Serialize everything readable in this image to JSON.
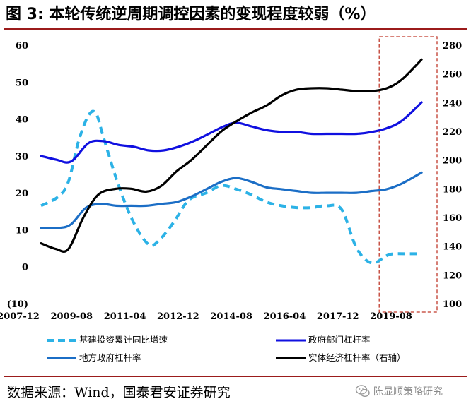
{
  "header": {
    "title": "图 3: 本轮传统逆周期调控因素的变现程度较弱（%）"
  },
  "footer": {
    "source": "数据来源：Wind，国泰君安证券研究",
    "watermark": "陈显顺策略研究"
  },
  "colors": {
    "infra": "#2cb2e6",
    "gov_dept": "#1010e0",
    "local_gov": "#1b6ec6",
    "real_econ": "#000000",
    "highlight_box": "#c0392b",
    "negative_label": "#c00000",
    "rule": "#9b1b1b"
  },
  "chart_data": {
    "type": "line",
    "title": "本轮传统逆周期调控因素的变现程度较弱（%）",
    "x_ticks": [
      "2007-12",
      "2009-08",
      "2011-04",
      "2012-12",
      "2014-08",
      "2016-04",
      "2017-12",
      "2019-08"
    ],
    "x_range": [
      2007.92,
      2021.0
    ],
    "left_axis": {
      "ticks": [
        "60",
        "50",
        "40",
        "30",
        "20",
        "10",
        "0",
        "(10)"
      ],
      "values": [
        60,
        50,
        40,
        30,
        20,
        10,
        0,
        -10
      ],
      "range": [
        -10,
        60
      ]
    },
    "right_axis": {
      "ticks": [
        "280",
        "260",
        "240",
        "220",
        "200",
        "180",
        "160",
        "140",
        "120",
        "100"
      ],
      "values": [
        280,
        260,
        240,
        220,
        200,
        180,
        160,
        140,
        120,
        100
      ],
      "range": [
        100,
        280
      ],
      "label": "右轴"
    },
    "highlight_region": {
      "x_start": 2019.17,
      "x_end": 2021.0
    },
    "series": [
      {
        "name": "基建投资累计同比增速",
        "key": "infra",
        "axis": "left",
        "style": "dashed",
        "points": [
          [
            2007.92,
            16.5
          ],
          [
            2008.5,
            19
          ],
          [
            2008.83,
            23
          ],
          [
            2009.17,
            34
          ],
          [
            2009.5,
            41
          ],
          [
            2009.75,
            41.5
          ],
          [
            2010.0,
            35
          ],
          [
            2010.5,
            22
          ],
          [
            2011.0,
            12
          ],
          [
            2011.5,
            6
          ],
          [
            2011.83,
            7
          ],
          [
            2012.33,
            12
          ],
          [
            2012.83,
            18
          ],
          [
            2013.42,
            20
          ],
          [
            2013.92,
            22
          ],
          [
            2014.42,
            21
          ],
          [
            2014.92,
            19.5
          ],
          [
            2015.42,
            17.5
          ],
          [
            2015.92,
            16.5
          ],
          [
            2016.42,
            16
          ],
          [
            2016.92,
            16
          ],
          [
            2017.42,
            16.5
          ],
          [
            2017.92,
            15.5
          ],
          [
            2018.42,
            5
          ],
          [
            2018.92,
            1
          ],
          [
            2019.42,
            3
          ],
          [
            2019.67,
            3.5
          ],
          [
            2020.17,
            3.5
          ],
          [
            2020.58,
            3.5
          ]
        ]
      },
      {
        "name": "政府部门杠杆率",
        "key": "gov_dept",
        "axis": "left",
        "style": "solid",
        "points": [
          [
            2007.92,
            30
          ],
          [
            2008.42,
            29
          ],
          [
            2008.92,
            28.5
          ],
          [
            2009.5,
            33.5
          ],
          [
            2010.0,
            34
          ],
          [
            2010.5,
            33
          ],
          [
            2011.0,
            32.5
          ],
          [
            2011.5,
            31.5
          ],
          [
            2012.0,
            31.5
          ],
          [
            2012.5,
            32.5
          ],
          [
            2013.0,
            34
          ],
          [
            2013.5,
            36
          ],
          [
            2014.0,
            38
          ],
          [
            2014.42,
            39
          ],
          [
            2014.92,
            38
          ],
          [
            2015.42,
            37
          ],
          [
            2015.92,
            36.5
          ],
          [
            2016.42,
            36.5
          ],
          [
            2016.92,
            36
          ],
          [
            2017.42,
            36
          ],
          [
            2017.92,
            36
          ],
          [
            2018.42,
            36
          ],
          [
            2018.92,
            36.5
          ],
          [
            2019.42,
            37.5
          ],
          [
            2019.92,
            39.5
          ],
          [
            2020.58,
            44.5
          ]
        ]
      },
      {
        "name": "地方政府杠杆率",
        "key": "local_gov",
        "axis": "left",
        "style": "solid",
        "points": [
          [
            2007.92,
            10.5
          ],
          [
            2008.5,
            10.5
          ],
          [
            2008.92,
            11.5
          ],
          [
            2009.42,
            16
          ],
          [
            2009.92,
            17
          ],
          [
            2010.42,
            16.5
          ],
          [
            2010.92,
            16.5
          ],
          [
            2011.42,
            16.5
          ],
          [
            2011.92,
            17
          ],
          [
            2012.42,
            17.5
          ],
          [
            2012.92,
            19
          ],
          [
            2013.42,
            21
          ],
          [
            2013.92,
            23
          ],
          [
            2014.42,
            24
          ],
          [
            2014.92,
            23
          ],
          [
            2015.42,
            21.5
          ],
          [
            2015.92,
            21
          ],
          [
            2016.42,
            20.5
          ],
          [
            2016.92,
            20
          ],
          [
            2017.42,
            20
          ],
          [
            2017.92,
            20
          ],
          [
            2018.42,
            20
          ],
          [
            2018.92,
            20.5
          ],
          [
            2019.42,
            21
          ],
          [
            2019.92,
            22.5
          ],
          [
            2020.58,
            25.5
          ]
        ]
      },
      {
        "name": "实体经济杠杆率（右轴）",
        "key": "real_econ",
        "axis": "right",
        "style": "solid",
        "points": [
          [
            2007.92,
            142
          ],
          [
            2008.42,
            138
          ],
          [
            2008.83,
            138
          ],
          [
            2009.33,
            160
          ],
          [
            2009.83,
            176
          ],
          [
            2010.42,
            180
          ],
          [
            2010.92,
            180
          ],
          [
            2011.42,
            178
          ],
          [
            2011.92,
            182
          ],
          [
            2012.42,
            192
          ],
          [
            2012.92,
            200
          ],
          [
            2013.42,
            210
          ],
          [
            2013.92,
            220
          ],
          [
            2014.42,
            227
          ],
          [
            2014.92,
            233
          ],
          [
            2015.42,
            238
          ],
          [
            2015.92,
            245
          ],
          [
            2016.42,
            249
          ],
          [
            2016.92,
            250
          ],
          [
            2017.42,
            250
          ],
          [
            2017.92,
            249
          ],
          [
            2018.42,
            248
          ],
          [
            2018.92,
            248
          ],
          [
            2019.42,
            250
          ],
          [
            2019.92,
            256
          ],
          [
            2020.58,
            270
          ]
        ]
      }
    ]
  }
}
